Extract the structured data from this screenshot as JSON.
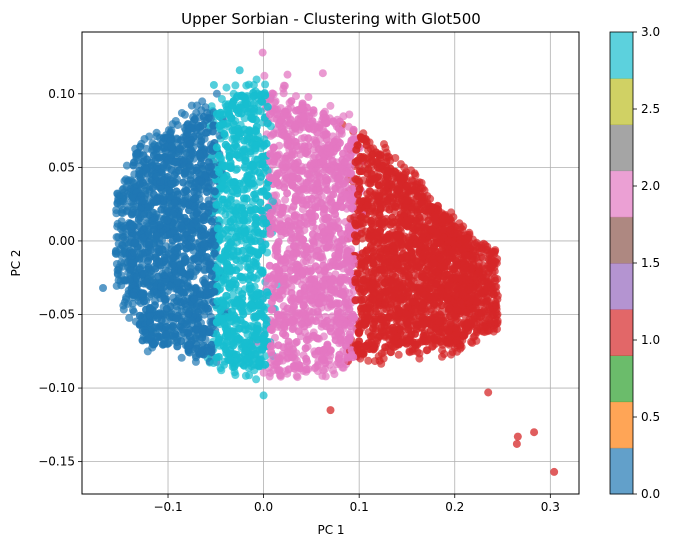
{
  "chart_data": {
    "type": "scatter",
    "title": "Upper Sorbian - Clustering with Glot500",
    "xlabel": "PC 1",
    "ylabel": "PC 2",
    "xlim": [
      -0.19,
      0.33
    ],
    "ylim": [
      -0.172,
      0.142
    ],
    "grid": true,
    "x_ticks": [
      -0.1,
      0.0,
      0.1,
      0.2,
      0.3
    ],
    "x_tick_labels": [
      "−0.1",
      "0.0",
      "0.1",
      "0.2",
      "0.3"
    ],
    "y_ticks": [
      0.1,
      0.05,
      0.0,
      -0.05,
      -0.1,
      -0.15
    ],
    "y_tick_labels": [
      "0.10",
      "0.05",
      "0.00",
      "−0.05",
      "−0.10",
      "−0.15"
    ],
    "colorbar": {
      "range": [
        0.0,
        3.0
      ],
      "colormap": "tab10",
      "ticks": [
        0.0,
        0.5,
        1.0,
        1.5,
        2.0,
        2.5,
        3.0
      ],
      "tick_labels": [
        "0.0",
        "0.5",
        "1.0",
        "1.5",
        "2.0",
        "2.5",
        "3.0"
      ],
      "colors": [
        "#1f77b4",
        "#ff7f0e",
        "#2ca02c",
        "#d62728",
        "#9467bd",
        "#8c564b",
        "#e377c2",
        "#7f7f7f",
        "#bcbd22",
        "#17becf"
      ]
    },
    "clusters": [
      {
        "label": 0,
        "color": "#1f77b4",
        "x_range": [
          -0.16,
          -0.048
        ],
        "y_range": [
          -0.085,
          0.078
        ],
        "center": [
          -0.1,
          -0.005
        ]
      },
      {
        "label": 1,
        "color": "#17becf",
        "x_range": [
          -0.055,
          0.012
        ],
        "y_range": [
          -0.1,
          0.11
        ],
        "center": [
          -0.02,
          0.0
        ]
      },
      {
        "label": 2,
        "color": "#e377c2",
        "x_range": [
          0.005,
          0.1
        ],
        "y_range": [
          -0.095,
          0.128
        ],
        "center": [
          0.05,
          0.0
        ]
      },
      {
        "label": 3,
        "color": "#d62728",
        "x_range": [
          0.085,
          0.245
        ],
        "y_range": [
          -0.115,
          0.085
        ],
        "center": [
          0.15,
          -0.02
        ]
      }
    ],
    "outliers": [
      {
        "x": -0.168,
        "y": -0.032,
        "cluster": 0
      },
      {
        "x": 0.304,
        "y": -0.157,
        "cluster": 3
      },
      {
        "x": 0.283,
        "y": -0.13,
        "cluster": 3
      },
      {
        "x": 0.266,
        "y": -0.133,
        "cluster": 3
      },
      {
        "x": 0.265,
        "y": -0.138,
        "cluster": 3
      },
      {
        "x": 0.235,
        "y": -0.103,
        "cluster": 3
      },
      {
        "x": 0.07,
        "y": -0.115,
        "cluster": 3
      },
      {
        "x": 0.0,
        "y": -0.105,
        "cluster": 1
      },
      {
        "x": -0.001,
        "y": 0.128,
        "cluster": 2
      },
      {
        "x": 0.025,
        "y": 0.113,
        "cluster": 2
      },
      {
        "x": 0.062,
        "y": 0.114,
        "cluster": 2
      },
      {
        "x": -0.025,
        "y": 0.116,
        "cluster": 1
      },
      {
        "x": -0.052,
        "y": 0.106,
        "cluster": 1
      }
    ]
  }
}
